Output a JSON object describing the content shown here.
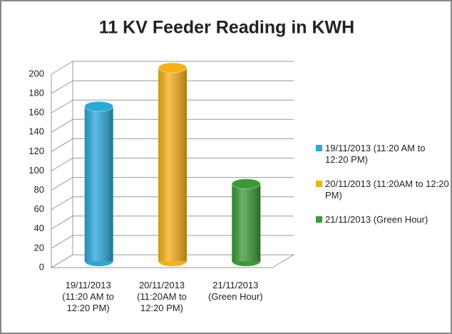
{
  "chart_data": {
    "type": "bar3d",
    "title": "11 KV Feeder Reading in  KWH",
    "categories": [
      "19/11/2013 (11:20 AM to 12:20 PM)",
      "20/11/2013 (11:20AM to 12:20 PM)",
      "21/11/2013 (Green Hour)"
    ],
    "values": [
      160,
      200,
      80
    ],
    "colors": [
      "#29a8da",
      "#f8b018",
      "#3c9a36"
    ],
    "ylim": [
      0,
      200
    ],
    "yticks": [
      0,
      20,
      40,
      60,
      80,
      100,
      120,
      140,
      160,
      180,
      200
    ],
    "grid": true,
    "legend": "right"
  }
}
